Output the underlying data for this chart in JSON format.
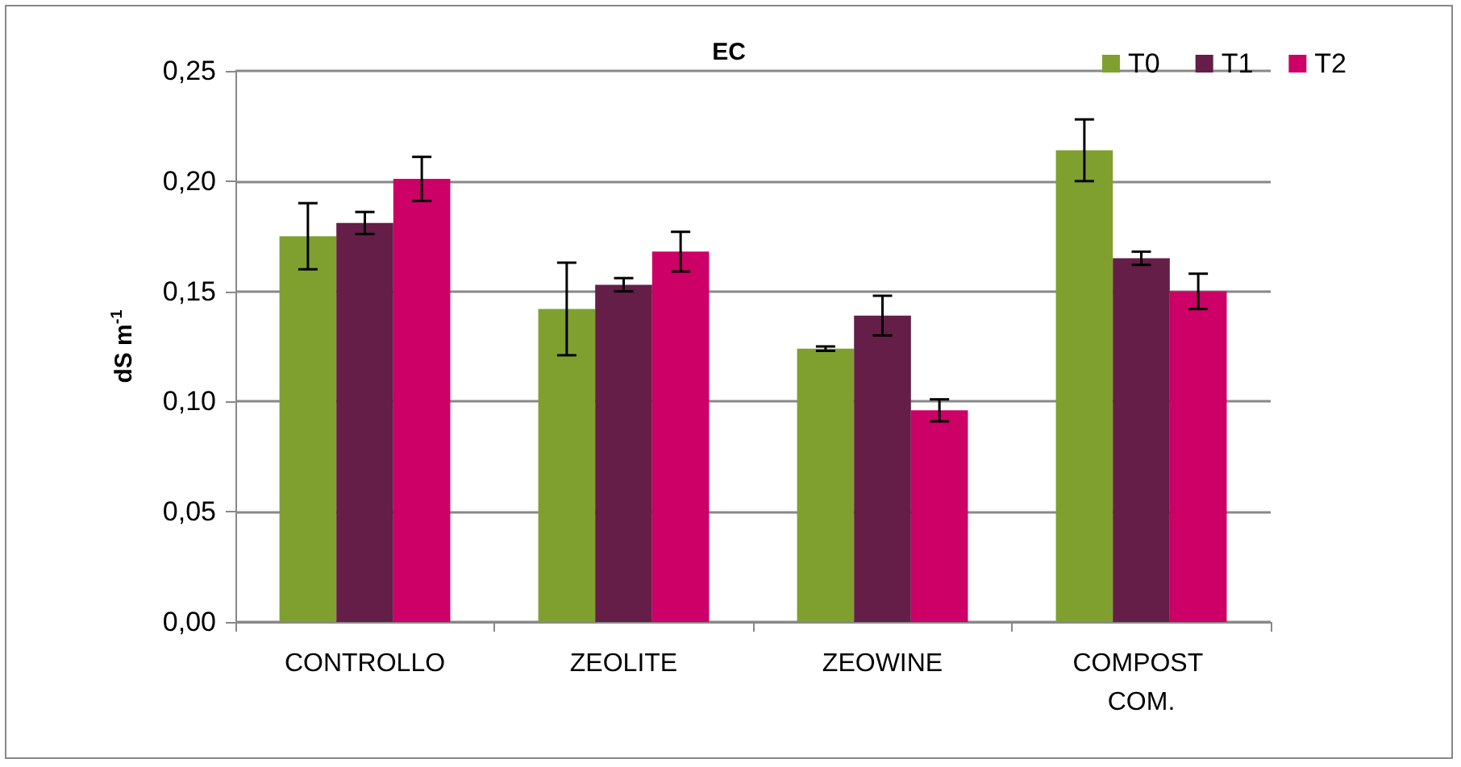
{
  "chart_data": {
    "type": "bar",
    "title": "EC",
    "ylabel": "dS m$^{-1}$",
    "categories": [
      "CONTROLLO",
      "ZEOLITE",
      "ZEOWINE",
      "COMPOST COM."
    ],
    "series": [
      {
        "name": "T0",
        "color": "#7fa02f",
        "values": [
          0.175,
          0.142,
          0.124,
          0.214
        ],
        "errors": [
          0.015,
          0.021,
          0.001,
          0.014
        ]
      },
      {
        "name": "T1",
        "color": "#641e48",
        "values": [
          0.181,
          0.153,
          0.139,
          0.165
        ],
        "errors": [
          0.005,
          0.003,
          0.009,
          0.003
        ]
      },
      {
        "name": "T2",
        "color": "#cc0066",
        "values": [
          0.201,
          0.168,
          0.096,
          0.15
        ],
        "errors": [
          0.01,
          0.009,
          0.005,
          0.008
        ]
      }
    ],
    "ylim": [
      0,
      0.25
    ],
    "yticks": [
      {
        "value": 0,
        "label": "0,00"
      },
      {
        "value": 0.05,
        "label": "0,05"
      },
      {
        "value": 0.1,
        "label": "0,10"
      },
      {
        "value": 0.15,
        "label": "0,15"
      },
      {
        "value": 0.2,
        "label": "0,20"
      },
      {
        "value": 0.25,
        "label": "0,25"
      }
    ],
    "grid": "y",
    "legend": "top right"
  }
}
